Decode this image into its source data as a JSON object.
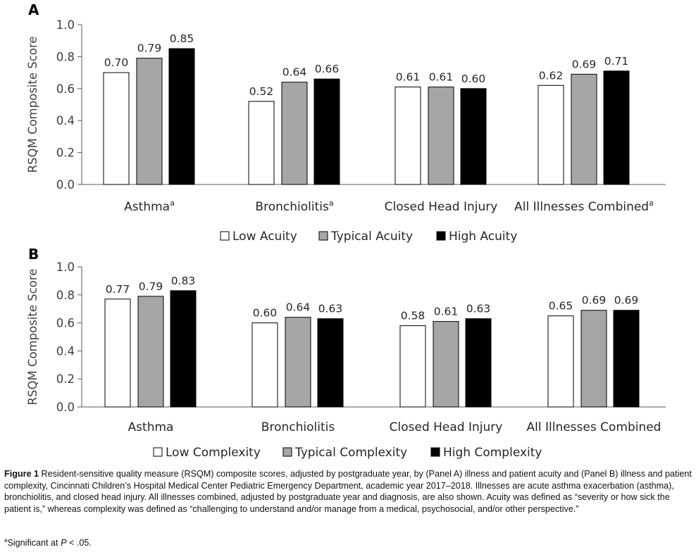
{
  "chart_data": [
    {
      "panel_label": "A",
      "type": "bar",
      "ylabel": "RSQM Composite Score",
      "xlabel": "",
      "ylim": [
        0,
        1.0
      ],
      "yticks": [
        "0.0",
        "0.2",
        "0.4",
        "0.6",
        "0.8",
        "1.0"
      ],
      "categories": [
        "Asthma",
        "Bronchiolitis",
        "Closed Head Injury",
        "All Illnesses Combined"
      ],
      "category_superscripts": [
        "a",
        "a",
        "",
        "a"
      ],
      "series": [
        {
          "name": "Low Acuity",
          "color": "#ffffff",
          "values": [
            0.7,
            0.52,
            0.61,
            0.62
          ],
          "labels": [
            "0.70",
            "0.52",
            "0.61",
            "0.62"
          ]
        },
        {
          "name": "Typical Acuity",
          "color": "#a6a6a6",
          "values": [
            0.79,
            0.64,
            0.61,
            0.69
          ],
          "labels": [
            "0.79",
            "0.64",
            "0.61",
            "0.69"
          ]
        },
        {
          "name": "High Acuity",
          "color": "#000000",
          "values": [
            0.85,
            0.66,
            0.6,
            0.71
          ],
          "labels": [
            "0.85",
            "0.66",
            "0.60",
            "0.71"
          ]
        }
      ],
      "legend": "bottom"
    },
    {
      "panel_label": "B",
      "type": "bar",
      "ylabel": "RSQM Composite Score",
      "xlabel": "",
      "ylim": [
        0,
        1.0
      ],
      "yticks": [
        "0.0",
        "0.2",
        "0.4",
        "0.6",
        "0.8",
        "1.0"
      ],
      "categories": [
        "Asthma",
        "Bronchiolitis",
        "Closed Head Injury",
        "All Illnesses Combined"
      ],
      "category_superscripts": [
        "",
        "",
        "",
        ""
      ],
      "series": [
        {
          "name": "Low Complexity",
          "color": "#ffffff",
          "values": [
            0.77,
            0.6,
            0.58,
            0.65
          ],
          "labels": [
            "0.77",
            "0.60",
            "0.58",
            "0.65"
          ]
        },
        {
          "name": "Typical Complexity",
          "color": "#a6a6a6",
          "values": [
            0.79,
            0.64,
            0.61,
            0.69
          ],
          "labels": [
            "0.79",
            "0.64",
            "0.61",
            "0.69"
          ]
        },
        {
          "name": "High Complexity",
          "color": "#000000",
          "values": [
            0.83,
            0.63,
            0.63,
            0.69
          ],
          "labels": [
            "0.83",
            "0.63",
            "0.63",
            "0.69"
          ]
        }
      ],
      "legend": "bottom"
    }
  ],
  "caption": {
    "label": "Figure 1",
    "text": " Resident-sensitive quality measure (RSQM) composite scores, adjusted by postgraduate year, by (Panel A) illness and patient acuity and (Panel B) illness and patient complexity, Cincinnati Children’s Hospital Medical Center Pediatric Emergency Department, academic year 2017–2018. Illnesses are acute asthma exacerbation (asthma), bronchiolitis, and closed head injury. All illnesses combined, adjusted by postgraduate year and diagnosis, are also shown. Acuity was defined as “severity or how sick the patient is,” whereas complexity was defined as “challenging to understand and/or manage from a medical, psychosocial, and/or other perspective.”",
    "footnote_mark": "a",
    "footnote_text": "Significant at ",
    "footnote_p": "P",
    "footnote_tail": " < .05."
  }
}
